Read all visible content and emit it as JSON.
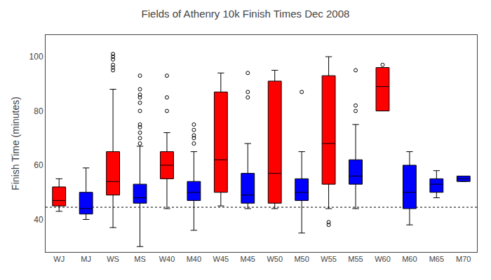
{
  "chart_data": {
    "type": "box",
    "title": "Fields of Athenry 10k Finish Times Dec 2008",
    "ylabel": "Finish Time (minutes)",
    "categories": [
      "WJ",
      "MJ",
      "WS",
      "MS",
      "W40",
      "M40",
      "W45",
      "M45",
      "W50",
      "M50",
      "W55",
      "M55",
      "W60",
      "M60",
      "M65",
      "M70"
    ],
    "colors": [
      "#FF0000",
      "#0000FF",
      "#FF0000",
      "#0000FF",
      "#FF0000",
      "#0000FF",
      "#FF0000",
      "#0000FF",
      "#FF0000",
      "#0000FF",
      "#FF0000",
      "#0000FF",
      "#FF0000",
      "#0000FF",
      "#0000FF",
      "#0000FF"
    ],
    "hline": 44.5,
    "ylim": [
      28,
      108
    ],
    "yticks": [
      40,
      60,
      80,
      100
    ],
    "grid": false,
    "boxes": [
      {
        "med": 47,
        "q1": 45,
        "q3": 52,
        "whislo": 43,
        "whishi": 55,
        "fliers": []
      },
      {
        "med": 44,
        "q1": 42,
        "q3": 50,
        "whislo": 40,
        "whishi": 59,
        "fliers": []
      },
      {
        "med": 54,
        "q1": 49,
        "q3": 65,
        "whislo": 37,
        "whishi": 88,
        "fliers": [
          95,
          96,
          97,
          99,
          100,
          101
        ]
      },
      {
        "med": 48,
        "q1": 46,
        "q3": 53,
        "whislo": 30,
        "whishi": 67,
        "fliers": [
          68,
          70,
          72,
          74,
          75,
          80,
          83,
          85,
          86,
          88,
          93
        ]
      },
      {
        "med": 60,
        "q1": 55,
        "q3": 65,
        "whislo": 44,
        "whishi": 72,
        "fliers": [
          80,
          85,
          93
        ]
      },
      {
        "med": 50,
        "q1": 47,
        "q3": 54,
        "whislo": 36,
        "whishi": 65,
        "fliers": [
          68,
          70,
          71,
          73,
          75
        ]
      },
      {
        "med": 62,
        "q1": 50,
        "q3": 87,
        "whislo": 45,
        "whishi": 94,
        "fliers": []
      },
      {
        "med": 49,
        "q1": 46,
        "q3": 57,
        "whislo": 44,
        "whishi": 68,
        "fliers": [
          85,
          87,
          94
        ]
      },
      {
        "med": 57,
        "q1": 46,
        "q3": 91,
        "whislo": 44,
        "whishi": 95,
        "fliers": []
      },
      {
        "med": 50,
        "q1": 47,
        "q3": 55,
        "whislo": 35,
        "whishi": 65,
        "fliers": [
          87
        ]
      },
      {
        "med": 68,
        "q1": 53,
        "q3": 93,
        "whislo": 44,
        "whishi": 100,
        "fliers": [
          38,
          39
        ]
      },
      {
        "med": 56,
        "q1": 53,
        "q3": 62,
        "whislo": 44,
        "whishi": 75,
        "fliers": [
          80,
          82,
          95
        ]
      },
      {
        "med": 89,
        "q1": 80,
        "q3": 96,
        "whislo": 82,
        "whishi": 96,
        "fliers": [
          97
        ]
      },
      {
        "med": 50,
        "q1": 44,
        "q3": 60,
        "whislo": 38,
        "whishi": 65,
        "fliers": []
      },
      {
        "med": 53,
        "q1": 50,
        "q3": 55,
        "whislo": 48,
        "whishi": 58,
        "fliers": []
      },
      {
        "med": 55,
        "q1": 54,
        "q3": 56,
        "whislo": 54,
        "whishi": 56,
        "fliers": []
      }
    ]
  }
}
